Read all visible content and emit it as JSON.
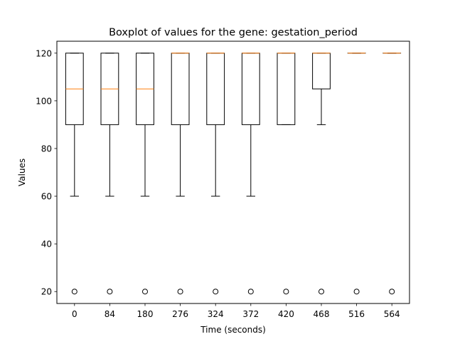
{
  "chart_data": {
    "type": "boxplot",
    "title": "Boxplot of values for the gene: gestation_period",
    "xlabel": "Time (seconds)",
    "ylabel": "Values",
    "ylim": [
      15.0,
      125.0
    ],
    "yticks": [
      20,
      40,
      60,
      80,
      100,
      120
    ],
    "categories": [
      "0",
      "84",
      "180",
      "276",
      "324",
      "372",
      "420",
      "468",
      "516",
      "564"
    ],
    "boxes": [
      {
        "whisker_low": 60,
        "q1": 90,
        "median": 105,
        "q3": 120,
        "whisker_high": 120,
        "outliers": [
          20
        ]
      },
      {
        "whisker_low": 60,
        "q1": 90,
        "median": 105,
        "q3": 120,
        "whisker_high": 120,
        "outliers": [
          20
        ]
      },
      {
        "whisker_low": 60,
        "q1": 90,
        "median": 105,
        "q3": 120,
        "whisker_high": 120,
        "outliers": [
          20
        ]
      },
      {
        "whisker_low": 60,
        "q1": 90,
        "median": 120,
        "q3": 120,
        "whisker_high": 120,
        "outliers": [
          20
        ]
      },
      {
        "whisker_low": 60,
        "q1": 90,
        "median": 120,
        "q3": 120,
        "whisker_high": 120,
        "outliers": [
          20
        ]
      },
      {
        "whisker_low": 60,
        "q1": 90,
        "median": 120,
        "q3": 120,
        "whisker_high": 120,
        "outliers": [
          20
        ]
      },
      {
        "whisker_low": 90,
        "q1": 90,
        "median": 120,
        "q3": 120,
        "whisker_high": 120,
        "outliers": [
          20
        ]
      },
      {
        "whisker_low": 90,
        "q1": 105,
        "median": 120,
        "q3": 120,
        "whisker_high": 120,
        "outliers": [
          20
        ]
      },
      {
        "whisker_low": 120,
        "q1": 120,
        "median": 120,
        "q3": 120,
        "whisker_high": 120,
        "outliers": [
          20
        ]
      },
      {
        "whisker_low": 120,
        "q1": 120,
        "median": 120,
        "q3": 120,
        "whisker_high": 120,
        "outliers": [
          20
        ]
      }
    ],
    "grid": false,
    "colors": {
      "box": "#000000",
      "median": "#ff7f0e",
      "outlier": "#000000"
    }
  }
}
